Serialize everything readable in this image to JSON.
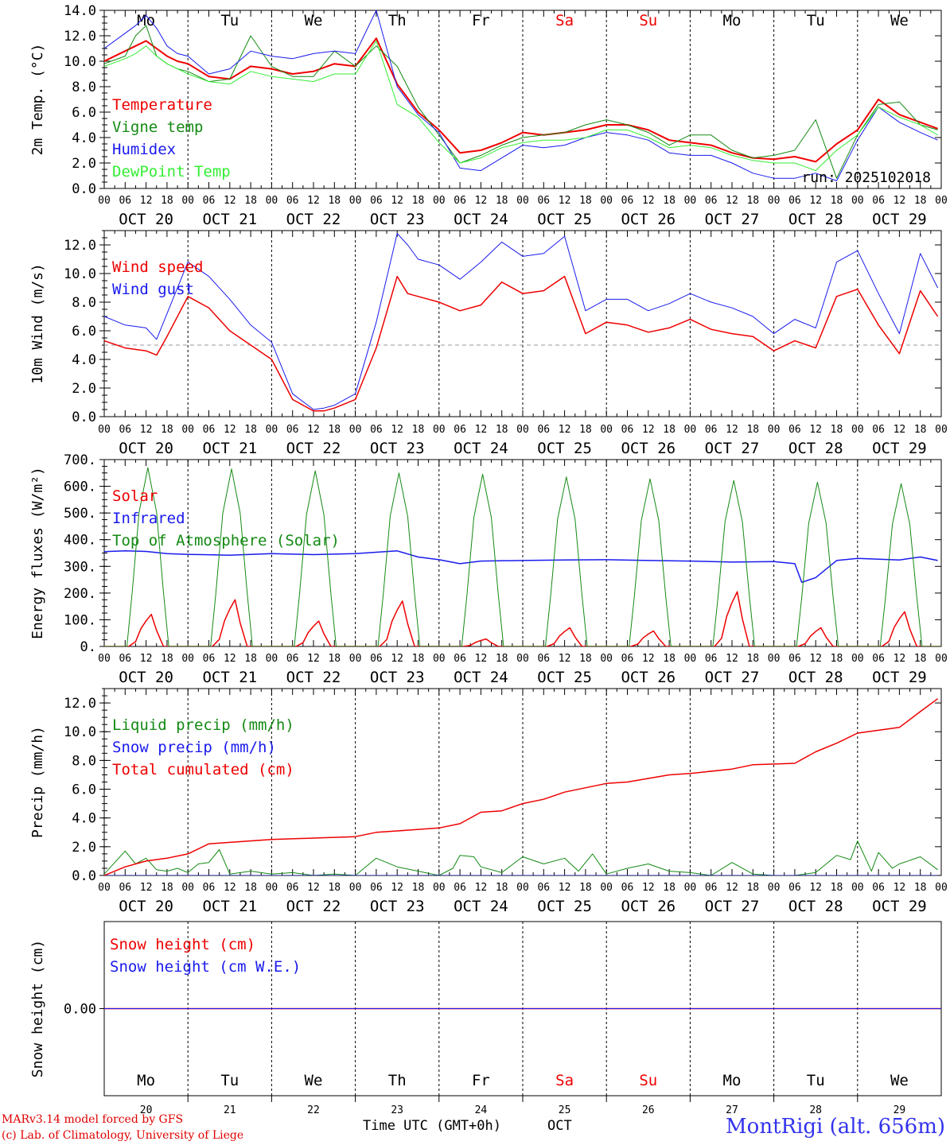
{
  "footer": {
    "model_line": "MARv3.14 model forced by GFS",
    "copyright_line": "(c) Lab. of Climatology, University of Liege",
    "time_axis_label": "Time UTC (GMT+0h)",
    "month_label": "OCT",
    "station": "MontRigi (alt. 656m)"
  },
  "run_label": "run: 2025102018",
  "days": [
    {
      "weekday": "Mo",
      "date": "OCT 20",
      "num": "20",
      "weekend": false
    },
    {
      "weekday": "Tu",
      "date": "OCT 21",
      "num": "21",
      "weekend": false
    },
    {
      "weekday": "We",
      "date": "OCT 22",
      "num": "22",
      "weekend": false
    },
    {
      "weekday": "Th",
      "date": "OCT 23",
      "num": "23",
      "weekend": false
    },
    {
      "weekday": "Fr",
      "date": "OCT 24",
      "num": "24",
      "weekend": false
    },
    {
      "weekday": "Sa",
      "date": "OCT 25",
      "num": "25",
      "weekend": true
    },
    {
      "weekday": "Su",
      "date": "OCT 26",
      "num": "26",
      "weekend": true
    },
    {
      "weekday": "Mo",
      "date": "OCT 27",
      "num": "27",
      "weekend": false
    },
    {
      "weekday": "Tu",
      "date": "OCT 28",
      "num": "28",
      "weekend": false
    },
    {
      "weekday": "We",
      "date": "OCT 29",
      "num": "29",
      "weekend": false
    }
  ],
  "hour_ticks": [
    "00",
    "06",
    "12",
    "18"
  ],
  "end_tick": "00",
  "colors": {
    "red": "#ee0000",
    "green": "#138a13",
    "blue": "#1a1aee",
    "lightgreen": "#33ee33",
    "weekend": "#ee0000",
    "grid": "#000000",
    "refline": "#999999"
  },
  "chart_data": [
    {
      "id": "temp",
      "type": "line",
      "ylabel": "2m Temp. (°C)",
      "ylim": [
        0,
        14
      ],
      "yticks": [
        "0.0",
        "2.0",
        "4.0",
        "6.0",
        "8.0",
        "10.0",
        "12.0",
        "14.0"
      ],
      "yticks_values": [
        0,
        2,
        4,
        6,
        8,
        10,
        12,
        14
      ],
      "x_unit": "hours from 2025-10-20 00 UTC",
      "show_weekdays_top": true,
      "show_run": true,
      "series": [
        {
          "name": "Temperature",
          "color": "red",
          "width": 2,
          "x": [
            0,
            6,
            9,
            12,
            15,
            18,
            21,
            24,
            30,
            36,
            42,
            48,
            54,
            60,
            66,
            72,
            78,
            84,
            90,
            96,
            102,
            108,
            114,
            120,
            126,
            132,
            138,
            144,
            150,
            156,
            162,
            168,
            174,
            180,
            186,
            192,
            198,
            204,
            210,
            216,
            222,
            228,
            234,
            239
          ],
          "y": [
            10.0,
            10.8,
            11.2,
            11.6,
            11.0,
            10.4,
            10.0,
            9.8,
            8.8,
            8.6,
            9.6,
            9.4,
            9.0,
            9.2,
            9.8,
            9.6,
            11.8,
            8.2,
            6.0,
            4.6,
            2.8,
            3.0,
            3.6,
            4.4,
            4.2,
            4.4,
            4.6,
            5.0,
            5.0,
            4.6,
            3.8,
            3.6,
            3.4,
            2.8,
            2.4,
            2.3,
            2.5,
            2.1,
            3.5,
            4.6,
            7.0,
            5.8,
            5.2,
            4.7
          ]
        },
        {
          "name": "Vigne temp",
          "color": "green",
          "width": 1,
          "x": [
            0,
            6,
            9,
            12,
            15,
            18,
            21,
            24,
            30,
            36,
            42,
            48,
            54,
            60,
            66,
            72,
            78,
            84,
            90,
            96,
            102,
            108,
            114,
            120,
            126,
            132,
            138,
            144,
            150,
            156,
            162,
            168,
            174,
            180,
            186,
            192,
            198,
            204,
            210,
            216,
            222,
            228,
            234,
            239
          ],
          "y": [
            9.8,
            10.4,
            12.0,
            12.8,
            10.4,
            9.8,
            9.4,
            9.2,
            8.4,
            8.6,
            12.0,
            9.6,
            8.8,
            8.8,
            10.8,
            9.6,
            11.2,
            9.6,
            6.4,
            4.2,
            2.0,
            2.6,
            3.4,
            4.0,
            4.2,
            4.4,
            5.0,
            5.4,
            5.0,
            4.4,
            3.4,
            4.2,
            4.2,
            3.0,
            2.4,
            2.6,
            3.0,
            5.4,
            0.8,
            4.2,
            6.6,
            6.8,
            5.0,
            4.6
          ]
        },
        {
          "name": "Humidex",
          "color": "blue",
          "width": 1,
          "x": [
            0,
            6,
            9,
            12,
            15,
            18,
            21,
            24,
            30,
            36,
            42,
            48,
            54,
            60,
            66,
            72,
            78,
            84,
            90,
            96,
            102,
            108,
            114,
            120,
            126,
            132,
            138,
            144,
            150,
            156,
            162,
            168,
            174,
            180,
            186,
            192,
            198,
            204,
            210,
            216,
            222,
            228,
            234,
            239
          ],
          "y": [
            11.0,
            12.2,
            12.8,
            13.6,
            12.6,
            11.2,
            10.6,
            10.4,
            9.0,
            9.4,
            10.8,
            10.4,
            10.2,
            10.6,
            10.8,
            10.6,
            14.0,
            8.0,
            5.8,
            4.4,
            1.6,
            1.4,
            2.4,
            3.4,
            3.2,
            3.4,
            4.0,
            4.4,
            4.2,
            3.8,
            2.8,
            2.6,
            2.6,
            2.0,
            1.2,
            0.8,
            0.8,
            1.2,
            0.6,
            3.8,
            6.4,
            5.2,
            4.4,
            3.8
          ]
        },
        {
          "name": "DewPoint Temp",
          "color": "lightgreen",
          "width": 1,
          "x": [
            0,
            6,
            9,
            12,
            15,
            18,
            21,
            24,
            30,
            36,
            42,
            48,
            54,
            60,
            66,
            72,
            78,
            84,
            90,
            96,
            102,
            108,
            114,
            120,
            126,
            132,
            138,
            144,
            150,
            156,
            162,
            168,
            174,
            180,
            186,
            192,
            198,
            204,
            210,
            216,
            222,
            228,
            234,
            239
          ],
          "y": [
            9.6,
            10.2,
            10.6,
            11.2,
            10.4,
            9.8,
            9.4,
            9.0,
            8.4,
            8.2,
            9.2,
            8.8,
            8.6,
            8.4,
            9.0,
            9.0,
            11.6,
            6.6,
            5.6,
            3.6,
            2.0,
            2.4,
            3.2,
            3.6,
            3.8,
            3.8,
            4.0,
            4.6,
            4.6,
            4.0,
            3.2,
            3.4,
            3.2,
            2.6,
            2.2,
            2.0,
            2.0,
            1.4,
            3.0,
            4.2,
            6.4,
            5.6,
            5.0,
            4.2
          ]
        }
      ]
    },
    {
      "id": "wind",
      "type": "line",
      "ylabel": "10m Wind (m/s)",
      "ylim": [
        0,
        13
      ],
      "yticks": [
        "0.0",
        "2.0",
        "4.0",
        "6.0",
        "8.0",
        "10.0",
        "12.0"
      ],
      "yticks_values": [
        0,
        2,
        4,
        6,
        8,
        10,
        12
      ],
      "x_unit": "hours from 2025-10-20 00 UTC",
      "refline": 5.0,
      "series": [
        {
          "name": "Wind speed",
          "color": "red",
          "width": 1.5,
          "x": [
            0,
            6,
            12,
            15,
            18,
            24,
            30,
            36,
            42,
            48,
            54,
            60,
            63,
            66,
            72,
            78,
            84,
            87,
            90,
            96,
            102,
            108,
            114,
            120,
            126,
            132,
            138,
            144,
            150,
            156,
            162,
            168,
            174,
            180,
            186,
            192,
            198,
            204,
            210,
            216,
            222,
            228,
            234,
            239
          ],
          "y": [
            5.3,
            4.8,
            4.6,
            4.3,
            5.6,
            8.4,
            7.6,
            6.0,
            5.0,
            4.0,
            1.2,
            0.4,
            0.4,
            0.6,
            1.2,
            4.8,
            9.8,
            8.6,
            8.4,
            8.0,
            7.4,
            7.8,
            9.4,
            8.6,
            8.8,
            9.8,
            5.8,
            6.6,
            6.4,
            5.9,
            6.2,
            6.8,
            6.1,
            5.8,
            5.6,
            4.6,
            5.3,
            4.8,
            8.4,
            8.9,
            6.4,
            4.4,
            8.8,
            7.0
          ]
        },
        {
          "name": "Wind gust",
          "color": "blue",
          "width": 1,
          "x": [
            0,
            6,
            12,
            15,
            18,
            24,
            30,
            36,
            42,
            48,
            54,
            60,
            63,
            66,
            72,
            78,
            84,
            87,
            90,
            96,
            102,
            108,
            114,
            120,
            126,
            132,
            138,
            144,
            150,
            156,
            162,
            168,
            174,
            180,
            186,
            192,
            198,
            204,
            210,
            216,
            222,
            228,
            234,
            239
          ],
          "y": [
            7.0,
            6.4,
            6.2,
            5.4,
            7.2,
            10.8,
            9.8,
            8.2,
            6.4,
            5.2,
            1.6,
            0.5,
            0.6,
            0.8,
            1.6,
            6.6,
            12.8,
            12.0,
            11.0,
            10.6,
            9.6,
            10.8,
            12.2,
            11.2,
            11.4,
            12.6,
            7.4,
            8.2,
            8.2,
            7.4,
            7.9,
            8.6,
            8.0,
            7.6,
            7.0,
            5.8,
            6.8,
            6.2,
            10.8,
            11.6,
            8.6,
            5.8,
            11.4,
            9.0
          ]
        }
      ]
    },
    {
      "id": "flux",
      "type": "line",
      "ylabel": "Energy fluxes (W/m²)",
      "ylim": [
        0,
        700
      ],
      "yticks": [
        "0.",
        "100.",
        "200.",
        "300.",
        "400.",
        "500.",
        "600.",
        "700."
      ],
      "yticks_values": [
        0,
        100,
        200,
        300,
        400,
        500,
        600,
        700
      ],
      "x_unit": "hours from 2025-10-20 00 UTC",
      "solar_peaks": [
        120,
        175,
        95,
        170,
        28,
        70,
        58,
        205,
        70,
        130
      ],
      "toa_peaks": [
        670,
        665,
        658,
        650,
        645,
        635,
        628,
        622,
        615,
        610
      ],
      "series": [
        {
          "name": "Solar",
          "color": "red",
          "width": 1.5,
          "x": [],
          "y": []
        },
        {
          "name": "Infrared",
          "color": "blue",
          "width": 1.5,
          "x": [
            0,
            6,
            12,
            18,
            24,
            36,
            48,
            60,
            72,
            84,
            90,
            96,
            102,
            108,
            120,
            132,
            144,
            156,
            168,
            180,
            192,
            198,
            200,
            204,
            210,
            216,
            228,
            234,
            239
          ],
          "y": [
            355,
            358,
            356,
            348,
            345,
            342,
            348,
            344,
            348,
            358,
            335,
            325,
            310,
            320,
            322,
            324,
            325,
            322,
            320,
            316,
            318,
            310,
            240,
            258,
            322,
            330,
            324,
            335,
            322
          ]
        },
        {
          "name": "Top of Atmosphere (Solar)",
          "color": "green",
          "width": 1,
          "x": [],
          "y": []
        }
      ]
    },
    {
      "id": "precip",
      "type": "line",
      "ylabel": "Precip (mm/h)",
      "ylim": [
        0,
        13
      ],
      "yticks": [
        "0.0",
        "2.0",
        "4.0",
        "6.0",
        "8.0",
        "10.0",
        "12.0"
      ],
      "yticks_values": [
        0,
        2,
        4,
        6,
        8,
        10,
        12
      ],
      "x_unit": "hours from 2025-10-20 00 UTC",
      "series": [
        {
          "name": "Liquid precip (mm/h)",
          "color": "green",
          "width": 1,
          "x": [
            0,
            3,
            6,
            9,
            12,
            15,
            18,
            21,
            24,
            27,
            30,
            33,
            36,
            42,
            48,
            54,
            60,
            66,
            72,
            78,
            84,
            90,
            96,
            100,
            102,
            106,
            108,
            114,
            120,
            126,
            132,
            136,
            140,
            144,
            150,
            156,
            162,
            168,
            174,
            180,
            186,
            192,
            198,
            204,
            210,
            214,
            216,
            220,
            222,
            226,
            228,
            234,
            239
          ],
          "y": [
            0.1,
            0.9,
            1.7,
            0.8,
            1.2,
            0.4,
            0.3,
            0.5,
            0.2,
            0.8,
            0.9,
            1.8,
            0.1,
            0.3,
            0.1,
            0.2,
            0.0,
            0.1,
            0.0,
            1.2,
            0.6,
            0.3,
            0.0,
            0.5,
            1.4,
            1.3,
            0.6,
            0.2,
            1.3,
            0.8,
            1.2,
            0.3,
            1.5,
            0.1,
            0.5,
            0.8,
            0.3,
            0.2,
            0.0,
            0.9,
            0.1,
            0.0,
            0.0,
            0.2,
            1.4,
            1.1,
            2.4,
            0.3,
            1.6,
            0.5,
            0.8,
            1.3,
            0.4
          ]
        },
        {
          "name": "Snow precip (mm/h)",
          "color": "blue",
          "width": 1,
          "x": [
            0,
            239
          ],
          "y": [
            0.0,
            0.0
          ]
        },
        {
          "name": "Total cumulated (cm)",
          "color": "red",
          "width": 1.5,
          "x": [
            0,
            6,
            12,
            18,
            24,
            30,
            36,
            48,
            60,
            72,
            78,
            84,
            96,
            102,
            108,
            114,
            120,
            126,
            132,
            144,
            150,
            162,
            168,
            180,
            186,
            192,
            198,
            204,
            210,
            216,
            222,
            228,
            234,
            239
          ],
          "y": [
            0.0,
            0.6,
            1.0,
            1.2,
            1.5,
            2.2,
            2.3,
            2.5,
            2.6,
            2.7,
            3.0,
            3.1,
            3.3,
            3.6,
            4.4,
            4.5,
            5.0,
            5.3,
            5.8,
            6.4,
            6.5,
            7.0,
            7.1,
            7.4,
            7.7,
            7.75,
            7.8,
            8.6,
            9.2,
            9.9,
            10.1,
            10.3,
            11.4,
            12.3
          ]
        }
      ]
    },
    {
      "id": "snow",
      "type": "line",
      "ylabel": "Snow height (cm)",
      "ylim": [
        -1,
        1
      ],
      "yticks": [
        "0.00"
      ],
      "yticks_values": [
        0
      ],
      "x_unit": "hours from 2025-10-20 00 UTC",
      "show_weekdays_bottom": true,
      "series": [
        {
          "name": "Snow height (cm)",
          "color": "red",
          "width": 1.5,
          "x": [
            0,
            240
          ],
          "y": [
            0,
            0
          ]
        },
        {
          "name": "Snow height (cm W.E.)",
          "color": "blue",
          "width": 1,
          "x": [
            0,
            240
          ],
          "y": [
            0,
            0
          ]
        }
      ]
    }
  ]
}
